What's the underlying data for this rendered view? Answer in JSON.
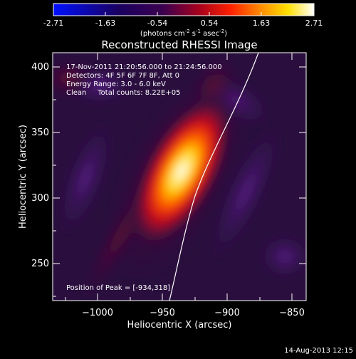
{
  "colorbar": {
    "tick_labels": [
      "-2.71",
      "-1.63",
      "-0.54",
      "0.54",
      "1.63",
      "2.71"
    ],
    "units_parts": [
      "(photons cm",
      "-2",
      " s",
      "-1",
      " asec",
      "-2",
      ")"
    ],
    "colormap": "blue-black-purple-red-yellow-white"
  },
  "plot": {
    "title": "Reconstructed RHESSI Image",
    "xlabel": "Heliocentric X (arcsec)",
    "ylabel": "Heliocentric Y (arcsec)",
    "x_ticks": [
      "−1000",
      "−950",
      "−900",
      "−850"
    ],
    "y_ticks": [
      "400",
      "350",
      "300",
      "250"
    ],
    "x_range": [
      -1032,
      -838
    ],
    "y_range": [
      218,
      410
    ],
    "info_lines": [
      "17-Nov-2011 21:20:56.000 to 21:24:56.000",
      "Detectors: 4F 5F 6F 7F 8F, Att 0",
      "Energy Range: 3.0 - 6.0 keV",
      "Clean     Total counts: 8.22E+05"
    ],
    "peak_label": "Position of Peak = [-934,318]",
    "peak_position": [
      -934,
      318
    ],
    "limb_curve": "solar-limb"
  },
  "footer": {
    "timestamp": "14-Aug-2013 12:15"
  }
}
